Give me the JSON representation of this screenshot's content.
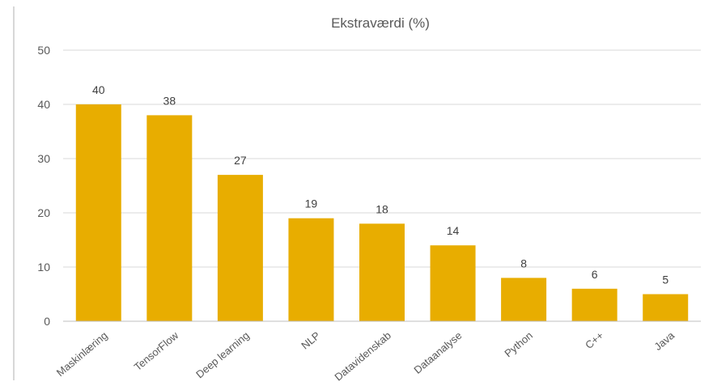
{
  "chart_data": {
    "type": "bar",
    "title": "Ekstraværdi (%)",
    "categories": [
      "Maskinlæring",
      "TensorFlow",
      "Deep learning",
      "NLP",
      "Datavidenskab",
      "Dataanalyse",
      "Python",
      "C++",
      "Java"
    ],
    "values": [
      40,
      38,
      27,
      19,
      18,
      14,
      8,
      6,
      5
    ],
    "ylim": [
      0,
      50
    ],
    "yticks": [
      0,
      10,
      20,
      30,
      40,
      50
    ],
    "grid": true,
    "legend": "none",
    "colors": {
      "bar": "#e8ad00",
      "grid": "#d9d9d9",
      "text": "#595959"
    }
  }
}
